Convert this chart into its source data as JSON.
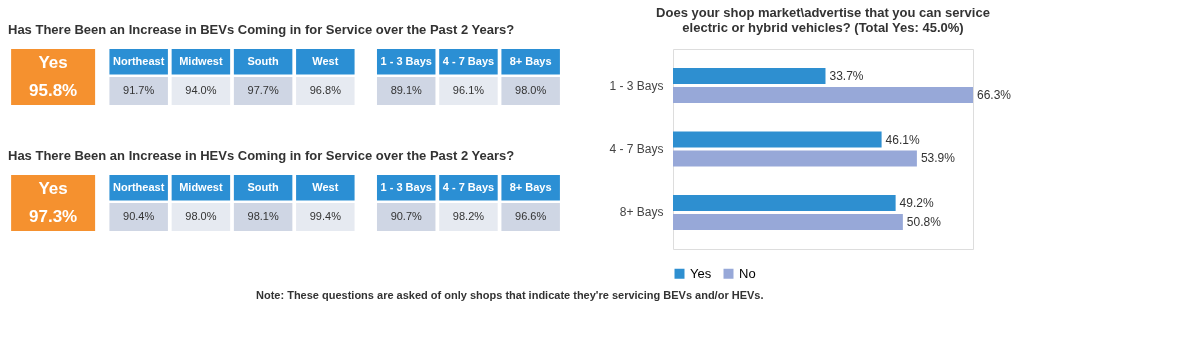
{
  "chart_data": [
    {
      "type": "other",
      "title": "Has There Been an Increase in BEVs Coming in for Service over the Past 2 Years?",
      "categories": [
        "Northeast",
        "Midwest",
        "South",
        "West",
        "1 - 3 Bays",
        "4 - 7 Bays",
        "8+ Bays"
      ],
      "values": [
        91.7,
        94.0,
        97.7,
        96.8,
        89.1,
        96.1,
        98.0
      ],
      "value_labels": [
        "91.7%",
        "94.0%",
        "97.7%",
        "96.8%",
        "89.1%",
        "96.1%",
        "98.0%"
      ],
      "annotations": [
        "Yes",
        "95.8%"
      ]
    },
    {
      "type": "other",
      "title": "Has There Been an Increase in HEVs Coming in for Service over the Past 2 Years?",
      "categories": [
        "Northeast",
        "Midwest",
        "South",
        "West",
        "1 - 3 Bays",
        "4 - 7 Bays",
        "8+ Bays"
      ],
      "values": [
        90.4,
        98.0,
        98.1,
        99.4,
        90.7,
        98.2,
        96.6
      ],
      "value_labels": [
        "90.4%",
        "98.0%",
        "98.1%",
        "99.4%",
        "90.7%",
        "98.2%",
        "96.6%"
      ],
      "annotations": [
        "Yes",
        "97.3%"
      ]
    },
    {
      "type": "bar",
      "orientation": "horizontal",
      "title": "Does your shop market\\advertise that you can service electric or hybrid vehicles? (Total Yes: 45.0%)",
      "categories": [
        "1 - 3 Bays",
        "4 - 7 Bays",
        "8+ Bays"
      ],
      "series": [
        {
          "name": "Yes",
          "color": "#2e8fd0",
          "values": [
            33.7,
            46.1,
            49.2
          ],
          "value_labels": [
            "33.7%",
            "46.1%",
            "49.2%"
          ]
        },
        {
          "name": "No",
          "color": "#97a8d8",
          "values": [
            66.3,
            53.9,
            50.8
          ],
          "value_labels": [
            "66.3%",
            "53.9%",
            "50.8%"
          ]
        }
      ],
      "legend": "bottom",
      "annotations": [
        "Note:  These questions are asked of only shops that indicate they're servicing BEVs and/or HEVs."
      ]
    }
  ]
}
